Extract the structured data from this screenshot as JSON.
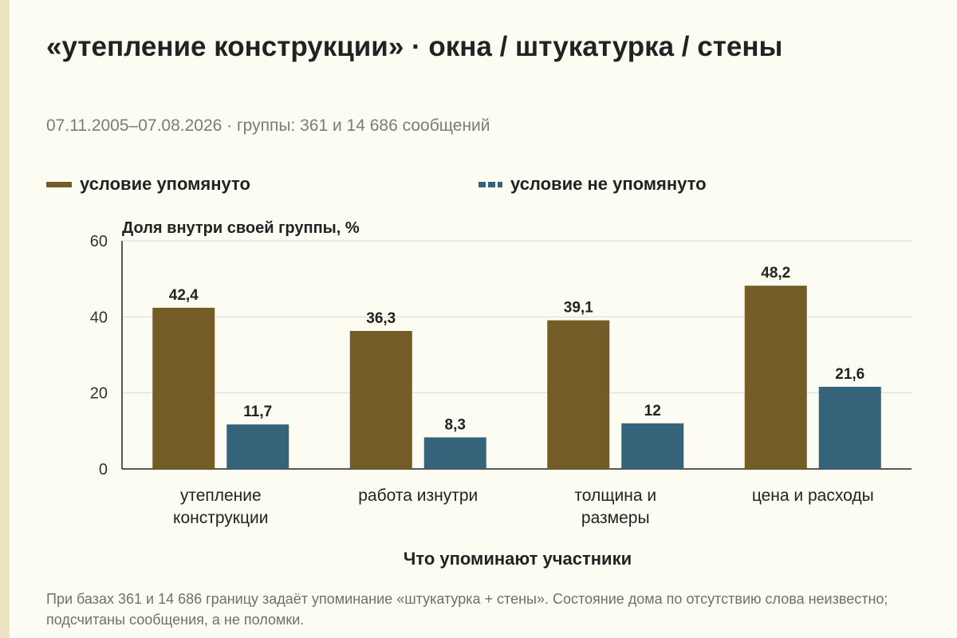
{
  "header": {
    "title": "«утепление конструкции» · окна / штукатурка / стены",
    "subtitle": "07.11.2005–07.08.2026 · группы: 361 и 14 686 сообщений"
  },
  "footnote": "При базах 361 и 14 686 границу задаёт упоминание «штукатурка + стены». Состояние дома по отсутствию слова неизвестно; подсчитаны сообщения, а не поломки.",
  "chart_data": {
    "type": "bar",
    "ylabel": "Доля внутри своей группы, %",
    "xlabel": "Что упоминают участники",
    "ylim": [
      0,
      60
    ],
    "yticks": [
      0,
      20,
      40,
      60
    ],
    "grid": true,
    "legend_position": "top",
    "categories": [
      [
        "утепление",
        "конструкции"
      ],
      [
        "работа изнутри"
      ],
      [
        "толщина и",
        "размеры"
      ],
      [
        "цена и расходы"
      ]
    ],
    "series": [
      {
        "name": "условие упомянуто",
        "color": "#735c26",
        "values": [
          42.4,
          36.3,
          39.1,
          48.2
        ],
        "labels": [
          "42,4",
          "36,3",
          "39,1",
          "48,2"
        ]
      },
      {
        "name": "условие не упомянуто",
        "color": "#34637a",
        "values": [
          11.7,
          8.3,
          12,
          21.6
        ],
        "labels": [
          "11,7",
          "8,3",
          "12",
          "21,6"
        ]
      }
    ]
  }
}
